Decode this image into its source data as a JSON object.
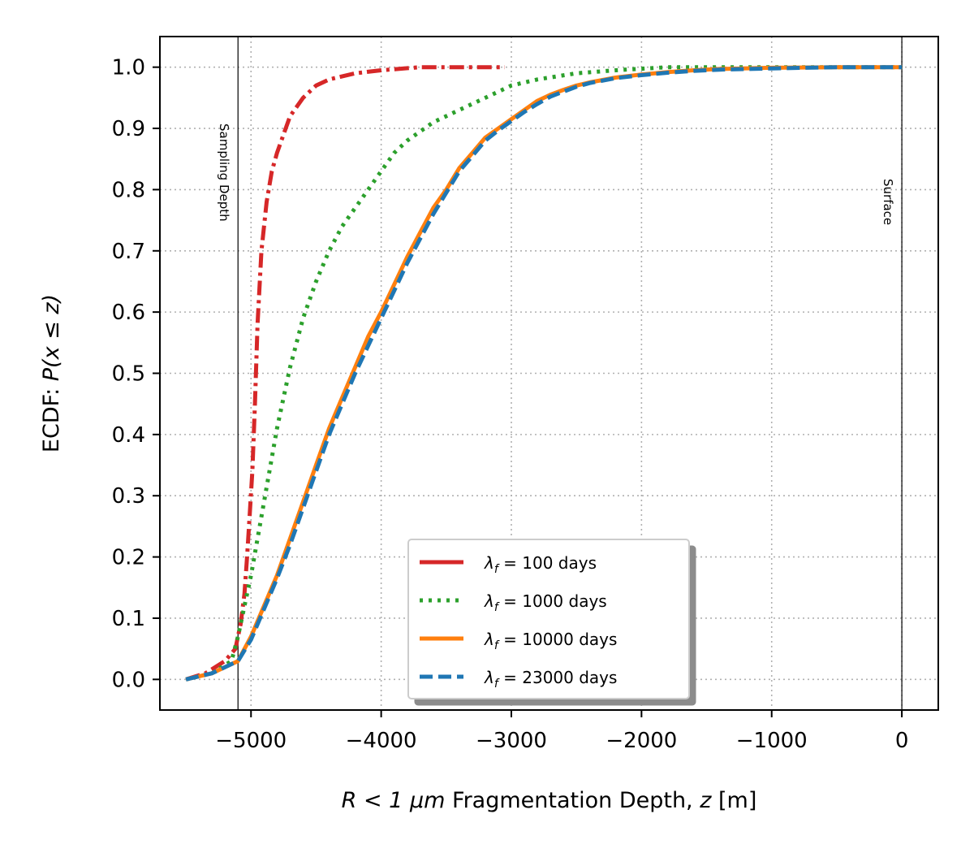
{
  "chart_data": {
    "type": "line",
    "xlabel_prefix": "R < 1 ",
    "xlabel_unit": "μm",
    "xlabel_rest": " Fragmentation Depth, ",
    "xlabel_var": "z",
    "xlabel_suffix": " [m]",
    "ylabel_prefix": "ECDF: ",
    "ylabel_math": "P(x ≤ z)",
    "xlim": [
      -5700,
      280
    ],
    "ylim": [
      -0.05,
      1.05
    ],
    "grid": true,
    "legend_position": "lower right",
    "xticks": [
      -5000,
      -4000,
      -3000,
      -2000,
      -1000,
      0
    ],
    "xtick_labels": [
      "−5000",
      "−4000",
      "−3000",
      "−2000",
      "−1000",
      "0"
    ],
    "yticks": [
      0.0,
      0.1,
      0.2,
      0.3,
      0.4,
      0.5,
      0.6,
      0.7,
      0.8,
      0.9,
      1.0
    ],
    "ytick_labels": [
      "0.0",
      "0.1",
      "0.2",
      "0.3",
      "0.4",
      "0.5",
      "0.6",
      "0.7",
      "0.8",
      "0.9",
      "1.0"
    ],
    "reference_lines": [
      {
        "x": -5100,
        "label": "Sampling Depth"
      },
      {
        "x": 0,
        "label": "Surface"
      }
    ],
    "series": [
      {
        "name": "λf = 100 days",
        "legend_base": "λ",
        "legend_sub": "f",
        "legend_rest": " = 100 days",
        "color": "#d62728",
        "style": "dashdot",
        "x": [
          -5500,
          -5350,
          -5200,
          -5120,
          -5080,
          -5050,
          -5030,
          -5010,
          -4990,
          -4970,
          -4950,
          -4920,
          -4880,
          -4840,
          -4800,
          -4750,
          -4700,
          -4600,
          -4500,
          -4400,
          -4200,
          -4000,
          -3700,
          -3050
        ],
        "y": [
          0.0,
          0.01,
          0.03,
          0.05,
          0.09,
          0.14,
          0.2,
          0.27,
          0.34,
          0.45,
          0.58,
          0.7,
          0.78,
          0.83,
          0.86,
          0.89,
          0.92,
          0.95,
          0.97,
          0.98,
          0.99,
          0.995,
          1.0,
          1.0
        ]
      },
      {
        "name": "λf = 1000 days",
        "legend_base": "λ",
        "legend_sub": "f",
        "legend_rest": " = 1000 days",
        "color": "#2ca02c",
        "style": "dotted",
        "x": [
          -5500,
          -5300,
          -5150,
          -5100,
          -5050,
          -5000,
          -4950,
          -4900,
          -4850,
          -4800,
          -4750,
          -4700,
          -4650,
          -4600,
          -4500,
          -4400,
          -4300,
          -4200,
          -4100,
          -4000,
          -3900,
          -3800,
          -3600,
          -3400,
          -3200,
          -3000,
          -2800,
          -2500,
          -2200,
          -1800,
          -1500,
          -1000,
          0
        ],
        "y": [
          0.0,
          0.01,
          0.03,
          0.07,
          0.12,
          0.17,
          0.23,
          0.29,
          0.35,
          0.41,
          0.46,
          0.51,
          0.55,
          0.59,
          0.65,
          0.7,
          0.74,
          0.77,
          0.8,
          0.83,
          0.86,
          0.88,
          0.91,
          0.93,
          0.95,
          0.97,
          0.98,
          0.99,
          0.995,
          1.0,
          1.0,
          1.0,
          1.0
        ]
      },
      {
        "name": "λf = 10000 days",
        "legend_base": "λ",
        "legend_sub": "f",
        "legend_rest": " = 10000 days",
        "color": "#ff7f0e",
        "style": "solid",
        "x": [
          -5500,
          -5300,
          -5100,
          -5000,
          -4900,
          -4800,
          -4700,
          -4600,
          -4500,
          -4400,
          -4300,
          -4200,
          -4100,
          -4000,
          -3900,
          -3800,
          -3700,
          -3600,
          -3500,
          -3400,
          -3300,
          -3200,
          -3100,
          -3000,
          -2900,
          -2800,
          -2700,
          -2600,
          -2500,
          -2400,
          -2200,
          -2000,
          -1800,
          -1600,
          -1400,
          -1000,
          -500,
          0
        ],
        "y": [
          0.0,
          0.01,
          0.03,
          0.07,
          0.12,
          0.17,
          0.23,
          0.29,
          0.35,
          0.41,
          0.46,
          0.51,
          0.56,
          0.6,
          0.645,
          0.69,
          0.73,
          0.77,
          0.8,
          0.835,
          0.86,
          0.885,
          0.9,
          0.915,
          0.93,
          0.945,
          0.955,
          0.963,
          0.97,
          0.975,
          0.983,
          0.988,
          0.992,
          0.995,
          0.997,
          0.999,
          1.0,
          1.0
        ]
      },
      {
        "name": "λf = 23000 days",
        "legend_base": "λ",
        "legend_sub": "f",
        "legend_rest": " = 23000 days",
        "color": "#1f77b4",
        "style": "dashed",
        "x": [
          -5500,
          -5300,
          -5100,
          -5000,
          -4900,
          -4800,
          -4700,
          -4600,
          -4500,
          -4400,
          -4300,
          -4200,
          -4100,
          -4000,
          -3900,
          -3800,
          -3700,
          -3600,
          -3500,
          -3400,
          -3300,
          -3200,
          -3100,
          -3000,
          -2900,
          -2800,
          -2700,
          -2600,
          -2500,
          -2400,
          -2200,
          -2000,
          -1800,
          -1600,
          -1400,
          -1000,
          -500,
          0
        ],
        "y": [
          0.0,
          0.01,
          0.03,
          0.065,
          0.115,
          0.165,
          0.22,
          0.28,
          0.34,
          0.4,
          0.45,
          0.5,
          0.545,
          0.59,
          0.635,
          0.68,
          0.72,
          0.76,
          0.795,
          0.83,
          0.855,
          0.88,
          0.897,
          0.912,
          0.927,
          0.94,
          0.952,
          0.96,
          0.968,
          0.974,
          0.982,
          0.987,
          0.991,
          0.994,
          0.996,
          0.998,
          1.0,
          1.0
        ]
      }
    ]
  }
}
